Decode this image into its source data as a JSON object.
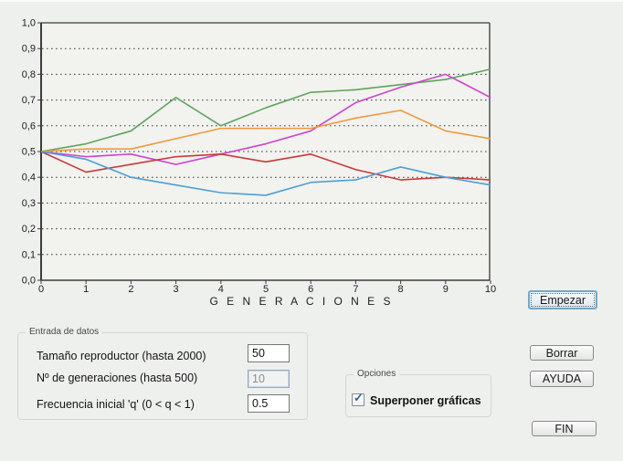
{
  "chart_data": {
    "type": "line",
    "title": "",
    "xlabel": "G E N E R A C I O N E S",
    "ylabel": "",
    "xlim": [
      0,
      10
    ],
    "ylim": [
      0.0,
      1.0
    ],
    "grid": "horizontal dotted lines every 0.1",
    "legend": "none",
    "plot_bg": "#f2f2ef",
    "x_tick_labels": [
      "0",
      "1",
      "2",
      "3",
      "4",
      "5",
      "6",
      "7",
      "8",
      "9",
      "10"
    ],
    "y_tick_labels": [
      "0,0",
      "0,1",
      "0,2",
      "0,3",
      "0,4",
      "0,5",
      "0,6",
      "0,7",
      "0,8",
      "0,9",
      "1,0"
    ],
    "x": [
      0,
      1,
      2,
      3,
      4,
      5,
      6,
      7,
      8,
      9,
      10
    ],
    "series": [
      {
        "name": "simulacion-verde",
        "color": "#5da65a",
        "values": [
          0.5,
          0.53,
          0.58,
          0.71,
          0.6,
          0.67,
          0.73,
          0.74,
          0.76,
          0.78,
          0.82
        ]
      },
      {
        "name": "simulacion-magenta",
        "color": "#cc44cc",
        "values": [
          0.5,
          0.48,
          0.49,
          0.45,
          0.49,
          0.53,
          0.58,
          0.69,
          0.75,
          0.8,
          0.71
        ]
      },
      {
        "name": "simulacion-naranja",
        "color": "#ef9a3d",
        "values": [
          0.5,
          0.51,
          0.51,
          0.55,
          0.59,
          0.59,
          0.59,
          0.63,
          0.66,
          0.58,
          0.55
        ]
      },
      {
        "name": "simulacion-roja",
        "color": "#c53b3b",
        "values": [
          0.5,
          0.42,
          0.45,
          0.48,
          0.49,
          0.46,
          0.49,
          0.43,
          0.39,
          0.4,
          0.39
        ]
      },
      {
        "name": "simulacion-azul",
        "color": "#4ba0d6",
        "values": [
          0.5,
          0.47,
          0.4,
          0.37,
          0.34,
          0.33,
          0.38,
          0.39,
          0.44,
          0.4,
          0.37
        ]
      }
    ]
  },
  "inputs_group": {
    "title": "Entrada de datos",
    "rows": [
      {
        "label": "Tamaño reproductor (hasta 2000)",
        "value": "50"
      },
      {
        "label": "Nº de generaciones (hasta 500)",
        "value": "10"
      },
      {
        "label": "Frecuencia inicial 'q' (0 < q < 1)",
        "value": "0.5"
      }
    ]
  },
  "options_group": {
    "title": "Opciones",
    "checkbox_label": "Superponer gráficas",
    "checked": true,
    "check_glyph": "✓"
  },
  "buttons": {
    "empezar": "Empezar",
    "borrar": "Borrar",
    "ayuda": "AYUDA",
    "fin": "FIN"
  }
}
